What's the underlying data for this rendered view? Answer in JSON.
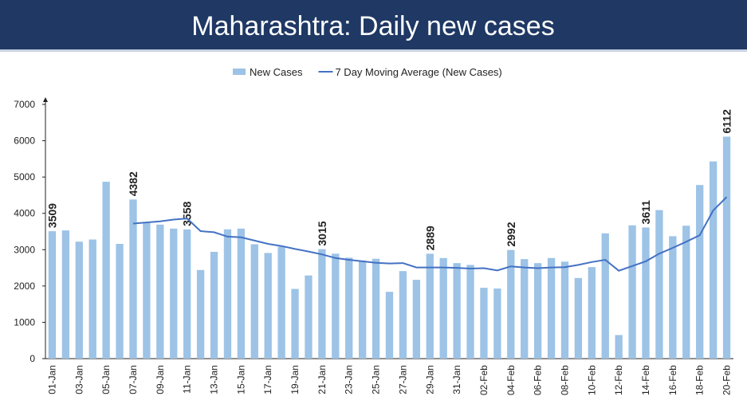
{
  "chart_data": {
    "type": "bar_line",
    "title": "Maharashtra: Daily new cases",
    "categories": [
      "01-Jan",
      null,
      "03-Jan",
      null,
      "05-Jan",
      null,
      "07-Jan",
      null,
      "09-Jan",
      null,
      "11-Jan",
      null,
      "13-Jan",
      null,
      "15-Jan",
      null,
      "17-Jan",
      null,
      "19-Jan",
      null,
      "21-Jan",
      null,
      "23-Jan",
      null,
      "25-Jan",
      null,
      "27-Jan",
      null,
      "29-Jan",
      null,
      "31-Jan",
      null,
      "02-Feb",
      null,
      "04-Feb",
      null,
      "06-Feb",
      null,
      "08-Feb",
      null,
      "10-Feb",
      null,
      "12-Feb",
      null,
      "14-Feb",
      null,
      "16-Feb",
      null,
      "18-Feb",
      null,
      "20-Feb"
    ],
    "series": [
      {
        "name": "New Cases",
        "type": "bar",
        "color": "#9dc3e6",
        "values": [
          3509,
          3530,
          3220,
          3280,
          4870,
          3160,
          4382,
          3730,
          3690,
          3580,
          3558,
          2440,
          2940,
          3560,
          3580,
          3150,
          2910,
          3080,
          1920,
          2290,
          3015,
          2890,
          2780,
          2700,
          2750,
          1840,
          2410,
          2170,
          2889,
          2770,
          2630,
          2580,
          1950,
          1930,
          2992,
          2740,
          2630,
          2770,
          2670,
          2220,
          2520,
          3450,
          650,
          3670,
          3611,
          4090,
          3370,
          3660,
          4780,
          5430,
          6112
        ],
        "value_labels": [
          "3509",
          null,
          null,
          null,
          null,
          null,
          "4382",
          null,
          null,
          null,
          "3558",
          null,
          null,
          null,
          null,
          null,
          null,
          null,
          null,
          null,
          "3015",
          null,
          null,
          null,
          null,
          null,
          null,
          null,
          "2889",
          null,
          null,
          null,
          null,
          null,
          "2992",
          null,
          null,
          null,
          null,
          null,
          null,
          null,
          null,
          null,
          "3611",
          null,
          null,
          null,
          null,
          null,
          "6112"
        ]
      },
      {
        "name": "7 Day Moving Average (New Cases)",
        "type": "line",
        "color": "#4472c4",
        "values": [
          null,
          null,
          null,
          null,
          null,
          null,
          3720,
          3750,
          3780,
          3830,
          3860,
          3510,
          3480,
          3360,
          3340,
          3250,
          3160,
          3100,
          3020,
          2950,
          2870,
          2770,
          2720,
          2680,
          2640,
          2620,
          2630,
          2510,
          2510,
          2510,
          2500,
          2480,
          2490,
          2430,
          2540,
          2510,
          2490,
          2510,
          2520,
          2580,
          2660,
          2720,
          2420,
          2550,
          2680,
          2890,
          3050,
          3220,
          3400,
          4080,
          4450
        ]
      }
    ],
    "ylim": [
      0,
      7000
    ],
    "yticks": [
      0,
      1000,
      2000,
      3000,
      4000,
      5000,
      6000,
      7000
    ],
    "grid": false,
    "legend": "top"
  }
}
